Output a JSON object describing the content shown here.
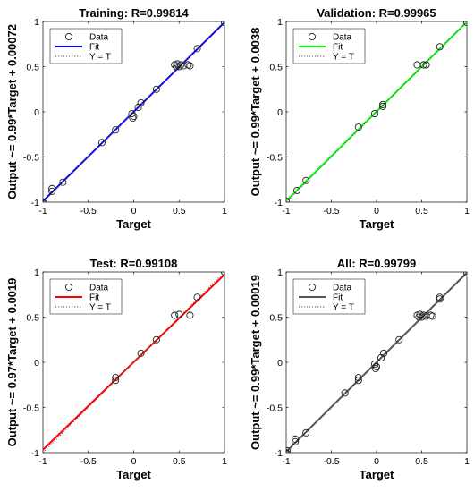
{
  "chart_data": [
    {
      "type": "scatter",
      "title": "Training: R=0.99814",
      "xlabel": "Target",
      "ylabel": "Output ~= 0.99*Target + 0.00072",
      "xlim": [
        -1,
        1
      ],
      "ylim": [
        -1,
        1
      ],
      "xticks": [
        "-1",
        "-0.5",
        "0",
        "0.5",
        "1"
      ],
      "yticks": [
        "-1",
        "-0.5",
        "0",
        "0.5",
        "1"
      ],
      "grid": false,
      "legend_position": "top-left",
      "legend": [
        "Data",
        "Fit",
        "Y = T"
      ],
      "fit_color": "#0000ff",
      "fit": {
        "slope": 0.99,
        "intercept": 0.00072
      },
      "points": [
        [
          -1,
          -1
        ],
        [
          -1,
          -1.01
        ],
        [
          -0.9,
          -0.85
        ],
        [
          -0.9,
          -0.88
        ],
        [
          -0.78,
          -0.78
        ],
        [
          -0.35,
          -0.34
        ],
        [
          -0.2,
          -0.2
        ],
        [
          -0.02,
          -0.02
        ],
        [
          0,
          -0.05
        ],
        [
          -0.01,
          -0.07
        ],
        [
          0.05,
          0.05
        ],
        [
          0.08,
          0.1
        ],
        [
          0.25,
          0.25
        ],
        [
          0.45,
          0.52
        ],
        [
          0.47,
          0.5
        ],
        [
          0.48,
          0.53
        ],
        [
          0.5,
          0.5
        ],
        [
          0.52,
          0.52
        ],
        [
          0.55,
          0.51
        ],
        [
          0.6,
          0.52
        ],
        [
          0.62,
          0.51
        ],
        [
          0.7,
          0.7
        ],
        [
          1,
          0.99
        ]
      ]
    },
    {
      "type": "scatter",
      "title": "Validation: R=0.99965",
      "xlabel": "Target",
      "ylabel": "Output ~= 0.99*Target + 0.0038",
      "xlim": [
        -1,
        1
      ],
      "ylim": [
        -1,
        1
      ],
      "xticks": [
        "-1",
        "-0.5",
        "0",
        "0.5",
        "1"
      ],
      "yticks": [
        "-1",
        "-0.5",
        "0",
        "0.5",
        "1"
      ],
      "grid": false,
      "legend_position": "top-left",
      "legend": [
        "Data",
        "Fit",
        "Y = T"
      ],
      "fit_color": "#00ff00",
      "fit": {
        "slope": 0.99,
        "intercept": 0.0038
      },
      "points": [
        [
          -1,
          -0.99
        ],
        [
          -0.88,
          -0.87
        ],
        [
          -0.78,
          -0.76
        ],
        [
          -0.2,
          -0.17
        ],
        [
          -0.02,
          -0.02
        ],
        [
          0.07,
          0.06
        ],
        [
          0.07,
          0.08
        ],
        [
          0.45,
          0.52
        ],
        [
          0.52,
          0.52
        ],
        [
          0.55,
          0.52
        ],
        [
          0.7,
          0.72
        ],
        [
          1,
          0.99
        ]
      ]
    },
    {
      "type": "scatter",
      "title": "Test: R=0.99108",
      "xlabel": "Target",
      "ylabel": "Output ~= 0.97*Target + 0.0019",
      "xlim": [
        -1,
        1
      ],
      "ylim": [
        -1,
        1
      ],
      "xticks": [
        "-1",
        "-0.5",
        "0",
        "0.5",
        "1"
      ],
      "yticks": [
        "-1",
        "-0.5",
        "0",
        "0.5",
        "1"
      ],
      "grid": false,
      "legend_position": "top-left",
      "legend": [
        "Data",
        "Fit",
        "Y = T"
      ],
      "fit_color": "#ff0000",
      "fit": {
        "slope": 0.97,
        "intercept": 0.0019
      },
      "points": [
        [
          -0.2,
          -0.17
        ],
        [
          -0.2,
          -0.2
        ],
        [
          0.08,
          0.1
        ],
        [
          0.25,
          0.25
        ],
        [
          0.45,
          0.52
        ],
        [
          0.5,
          0.53
        ],
        [
          0.62,
          0.52
        ],
        [
          0.7,
          0.72
        ],
        [
          1,
          1
        ]
      ]
    },
    {
      "type": "scatter",
      "title": "All: R=0.99799",
      "xlabel": "Target",
      "ylabel": "Output ~= 0.99*Target + 0.00019",
      "xlim": [
        -1,
        1
      ],
      "ylim": [
        -1,
        1
      ],
      "xticks": [
        "-1",
        "-0.5",
        "0",
        "0.5",
        "1"
      ],
      "yticks": [
        "-1",
        "-0.5",
        "0",
        "0.5",
        "1"
      ],
      "grid": false,
      "legend_position": "top-left",
      "legend": [
        "Data",
        "Fit",
        "Y = T"
      ],
      "fit_color": "#555555",
      "fit": {
        "slope": 0.99,
        "intercept": 0.00019
      },
      "points": [
        [
          -1,
          -1
        ],
        [
          -1,
          -1.01
        ],
        [
          -0.99,
          -0.98
        ],
        [
          -0.9,
          -0.85
        ],
        [
          -0.9,
          -0.88
        ],
        [
          -0.78,
          -0.78
        ],
        [
          -0.35,
          -0.34
        ],
        [
          -0.2,
          -0.17
        ],
        [
          -0.2,
          -0.2
        ],
        [
          -0.02,
          -0.02
        ],
        [
          0,
          -0.05
        ],
        [
          -0.01,
          -0.07
        ],
        [
          0.05,
          0.05
        ],
        [
          0.08,
          0.1
        ],
        [
          0.25,
          0.25
        ],
        [
          0.45,
          0.52
        ],
        [
          0.47,
          0.5
        ],
        [
          0.48,
          0.53
        ],
        [
          0.5,
          0.5
        ],
        [
          0.52,
          0.52
        ],
        [
          0.55,
          0.51
        ],
        [
          0.6,
          0.52
        ],
        [
          0.62,
          0.51
        ],
        [
          0.7,
          0.7
        ],
        [
          0.7,
          0.72
        ],
        [
          1,
          0.99
        ]
      ]
    }
  ]
}
